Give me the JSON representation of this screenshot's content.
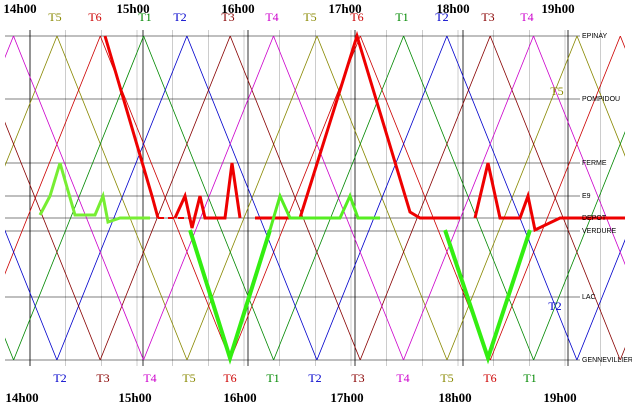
{
  "hours_top": [
    "14h00",
    "15h00",
    "16h00",
    "17h00",
    "18h00",
    "19h00"
  ],
  "hours_bottom": [
    "14h00",
    "15h00",
    "16h00",
    "17h00",
    "18h00",
    "19h00"
  ],
  "trains_top": [
    {
      "label": "T5",
      "color": "#888800"
    },
    {
      "label": "T6",
      "color": "#cc0000"
    },
    {
      "label": "T1",
      "color": "#008800"
    },
    {
      "label": "T2",
      "color": "#0000cc"
    },
    {
      "label": "T3",
      "color": "#880000"
    },
    {
      "label": "T4",
      "color": "#cc00cc"
    },
    {
      "label": "T5",
      "color": "#888800"
    },
    {
      "label": "T6",
      "color": "#cc0000"
    },
    {
      "label": "T1",
      "color": "#008800"
    },
    {
      "label": "T2",
      "color": "#0000cc"
    },
    {
      "label": "T3",
      "color": "#880000"
    },
    {
      "label": "T4",
      "color": "#cc00cc"
    }
  ],
  "trains_side": [
    {
      "label": "T5",
      "color": "#888800"
    },
    {
      "label": "T2",
      "color": "#0000cc"
    }
  ],
  "trains_bottom": [
    {
      "label": "T2",
      "color": "#0000cc"
    },
    {
      "label": "T3",
      "color": "#880000"
    },
    {
      "label": "T4",
      "color": "#cc00cc"
    },
    {
      "label": "T5",
      "color": "#888800"
    },
    {
      "label": "T6",
      "color": "#cc0000"
    },
    {
      "label": "T1",
      "color": "#008800"
    },
    {
      "label": "T2",
      "color": "#0000cc"
    },
    {
      "label": "T3",
      "color": "#880000"
    },
    {
      "label": "T4",
      "color": "#cc00cc"
    },
    {
      "label": "T5",
      "color": "#888800"
    },
    {
      "label": "T6",
      "color": "#cc0000"
    },
    {
      "label": "T1",
      "color": "#008800"
    }
  ],
  "stations": [
    "EPINAY",
    "POMPIDOU",
    "FERME",
    "E9",
    "DEPOT",
    "VERDURE",
    "LAC",
    "GENNEVILLIER"
  ]
}
